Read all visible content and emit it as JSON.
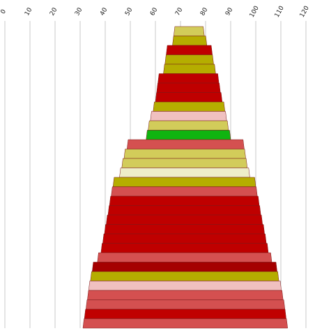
{
  "chart_data": {
    "type": "bar",
    "title": "",
    "xlabel": "",
    "ylabel": "",
    "xlim": [
      0,
      120
    ],
    "x_ticks": [
      0,
      10,
      20,
      30,
      40,
      50,
      60,
      70,
      80,
      90,
      100,
      110,
      120
    ],
    "x_tick_labels": [
      "0",
      "10",
      "20",
      "30",
      "40",
      "50",
      "60",
      "70",
      "80",
      "90",
      "100",
      "110",
      "120"
    ],
    "grid": "vertical",
    "legend": "none",
    "description_of_layout": "",
    "bands": [
      {
        "start": 67.3,
        "end": 79.5,
        "color": "#d2cc5a"
      },
      {
        "start": 66.8,
        "end": 80.5,
        "color": "#b5ad00"
      },
      {
        "start": 64.3,
        "end": 82.7,
        "color": "#bf0000"
      },
      {
        "start": 63.8,
        "end": 83.2,
        "color": "#b5ad00"
      },
      {
        "start": 63.2,
        "end": 84.0,
        "color": "#b5ad00"
      },
      {
        "start": 61.0,
        "end": 85.3,
        "color": "#bf0000"
      },
      {
        "start": 60.5,
        "end": 85.9,
        "color": "#bf0000"
      },
      {
        "start": 60.0,
        "end": 86.6,
        "color": "#bf0000"
      },
      {
        "start": 59.1,
        "end": 87.7,
        "color": "#b5ad00"
      },
      {
        "start": 58.0,
        "end": 88.4,
        "color": "#f0c0c0"
      },
      {
        "start": 57.1,
        "end": 89.1,
        "color": "#d2cc5a"
      },
      {
        "start": 56.3,
        "end": 90.0,
        "color": "#10b410"
      },
      {
        "start": 48.7,
        "end": 95.4,
        "color": "#d45050"
      },
      {
        "start": 47.5,
        "end": 96.0,
        "color": "#d2cc5a"
      },
      {
        "start": 46.6,
        "end": 96.6,
        "color": "#d2cc5a"
      },
      {
        "start": 45.7,
        "end": 97.6,
        "color": "#eeeec8"
      },
      {
        "start": 43.1,
        "end": 100.0,
        "color": "#b5ad00"
      },
      {
        "start": 42.4,
        "end": 100.6,
        "color": "#d45050"
      },
      {
        "start": 41.7,
        "end": 101.4,
        "color": "#bf0000"
      },
      {
        "start": 41.1,
        "end": 102.0,
        "color": "#bf0000"
      },
      {
        "start": 40.4,
        "end": 102.7,
        "color": "#bf0000"
      },
      {
        "start": 39.7,
        "end": 103.5,
        "color": "#bf0000"
      },
      {
        "start": 39.0,
        "end": 104.2,
        "color": "#bf0000"
      },
      {
        "start": 38.3,
        "end": 105.0,
        "color": "#bf0000"
      },
      {
        "start": 36.9,
        "end": 106.4,
        "color": "#d45050"
      },
      {
        "start": 34.8,
        "end": 108.5,
        "color": "#a50000"
      },
      {
        "start": 34.1,
        "end": 109.2,
        "color": "#b5ad00"
      },
      {
        "start": 33.4,
        "end": 110.2,
        "color": "#f0c0c0"
      },
      {
        "start": 32.9,
        "end": 110.9,
        "color": "#d45050"
      },
      {
        "start": 32.3,
        "end": 111.6,
        "color": "#d45050"
      },
      {
        "start": 31.7,
        "end": 112.1,
        "color": "#c00000"
      },
      {
        "start": 31.1,
        "end": 112.7,
        "color": "#d45050"
      }
    ]
  }
}
